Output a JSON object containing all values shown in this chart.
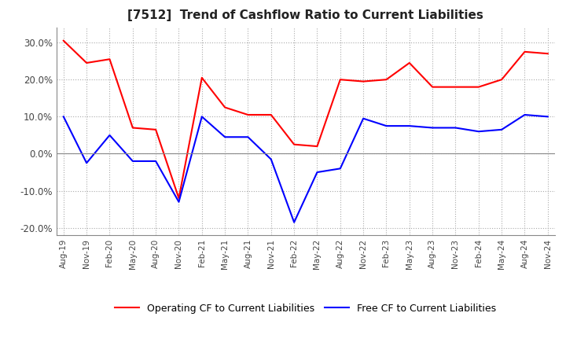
{
  "title": "[7512]  Trend of Cashflow Ratio to Current Liabilities",
  "title_fontsize": 11,
  "x_labels": [
    "Aug-19",
    "Nov-19",
    "Feb-20",
    "May-20",
    "Aug-20",
    "Nov-20",
    "Feb-21",
    "May-21",
    "Aug-21",
    "Nov-21",
    "Feb-22",
    "May-22",
    "Aug-22",
    "Nov-22",
    "Feb-23",
    "May-23",
    "Aug-23",
    "Nov-23",
    "Feb-24",
    "May-24",
    "Aug-24",
    "Nov-24"
  ],
  "operating_cf": [
    30.5,
    24.5,
    25.5,
    7.0,
    6.5,
    -12.0,
    20.5,
    12.5,
    10.5,
    10.5,
    2.5,
    2.0,
    20.0,
    19.5,
    20.0,
    24.5,
    18.0,
    18.0,
    18.0,
    20.0,
    27.5,
    27.0
  ],
  "free_cf": [
    10.0,
    -2.5,
    5.0,
    -2.0,
    -2.0,
    -13.0,
    10.0,
    4.5,
    4.5,
    -1.5,
    -18.5,
    -5.0,
    -4.0,
    9.5,
    7.5,
    7.5,
    7.0,
    7.0,
    6.0,
    6.5,
    10.5,
    10.0
  ],
  "operating_color": "#ff0000",
  "free_color": "#0000ff",
  "ylim": [
    -22,
    34
  ],
  "yticks": [
    -20,
    -10,
    0,
    10,
    20,
    30
  ],
  "background_color": "#ffffff",
  "grid_color": "#aaaaaa",
  "legend_labels": [
    "Operating CF to Current Liabilities",
    "Free CF to Current Liabilities"
  ]
}
